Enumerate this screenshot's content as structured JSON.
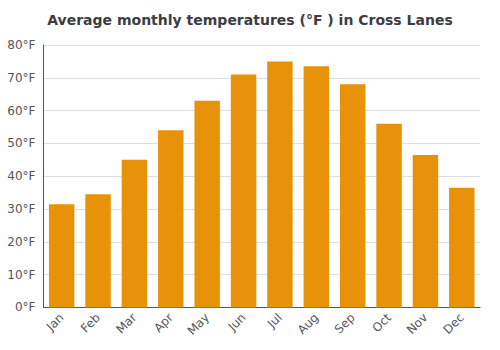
{
  "chart_data": {
    "type": "bar",
    "title": "Average monthly temperatures (°F ) in Cross Lanes",
    "categories": [
      "Jan",
      "Feb",
      "Mar",
      "Apr",
      "May",
      "Jun",
      "Jul",
      "Aug",
      "Sep",
      "Oct",
      "Nov",
      "Dec"
    ],
    "values": [
      31.5,
      34.5,
      45.0,
      54.0,
      63.0,
      71.0,
      75.0,
      73.5,
      68.0,
      56.0,
      46.5,
      36.5
    ],
    "color": "#E8920A",
    "ylim": [
      0,
      80
    ],
    "yticks": [
      {
        "value": 0,
        "label": "0°F"
      },
      {
        "value": 10,
        "label": "10°F"
      },
      {
        "value": 20,
        "label": "20°F"
      },
      {
        "value": 30,
        "label": "30°F"
      },
      {
        "value": 40,
        "label": "40°F"
      },
      {
        "value": 50,
        "label": "50°F"
      },
      {
        "value": 60,
        "label": "60°F"
      },
      {
        "value": 70,
        "label": "70°F"
      },
      {
        "value": 80,
        "label": "80°F"
      }
    ],
    "grid": true
  }
}
